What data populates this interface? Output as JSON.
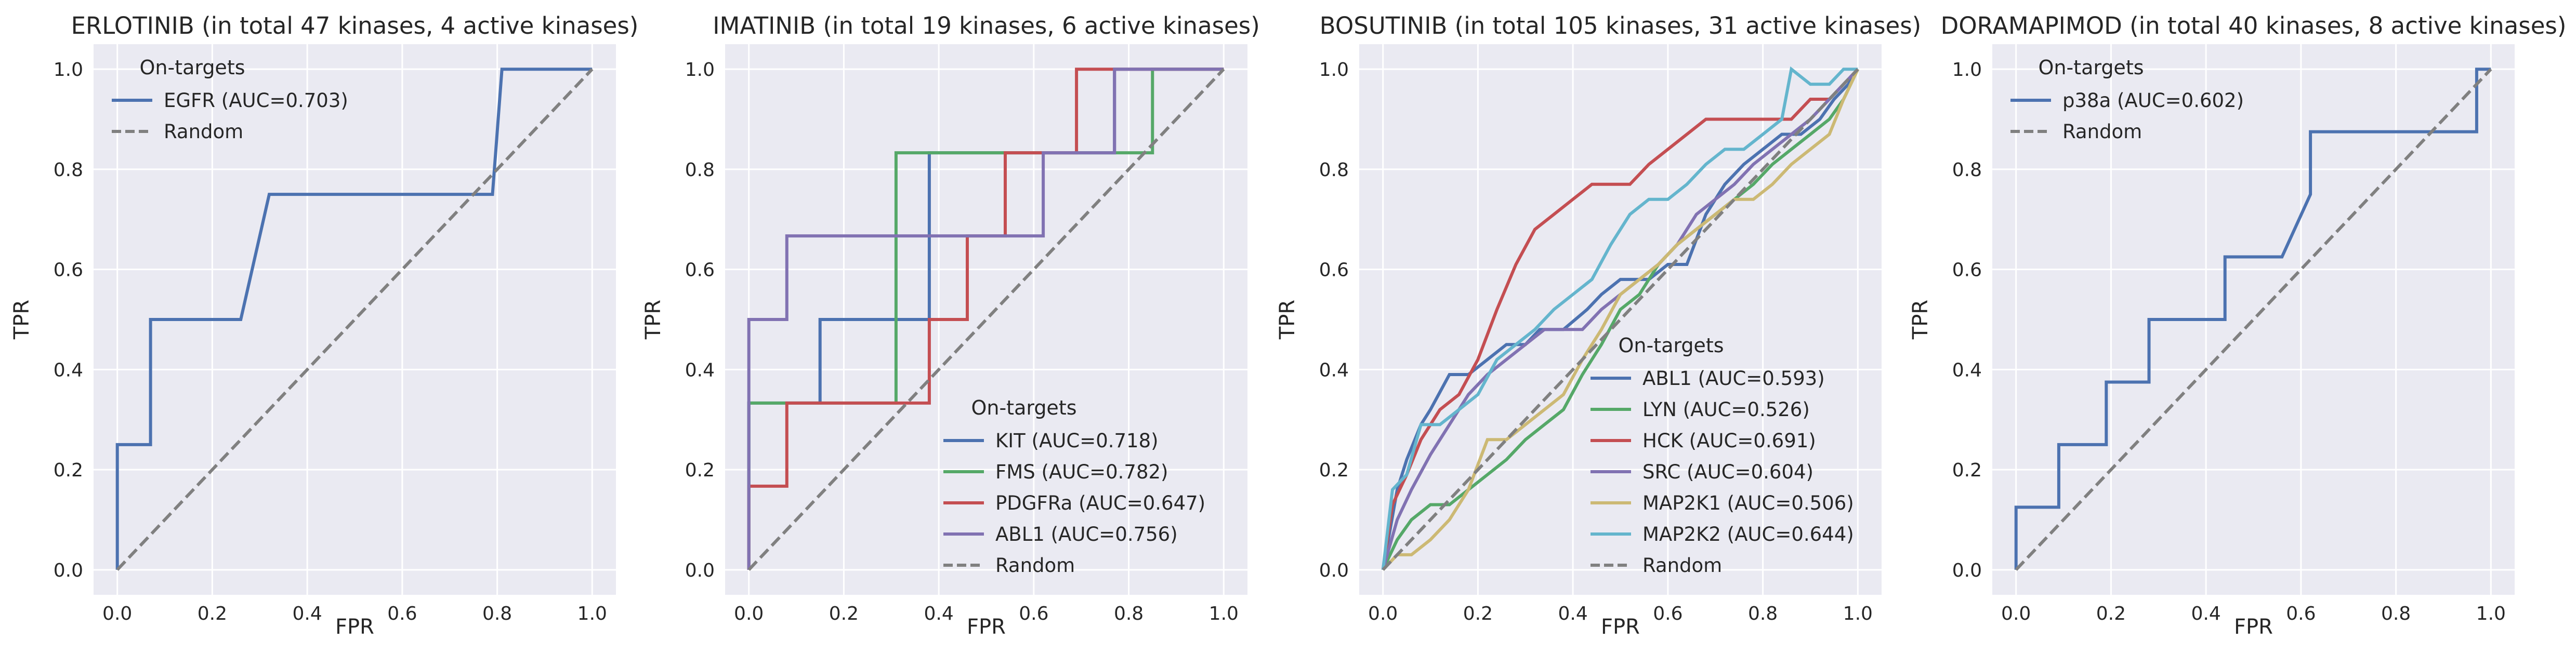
{
  "chart_data": [
    {
      "type": "line",
      "title": "ERLOTINIB (in total 47 kinases, 4 active kinases)",
      "xlabel": "FPR",
      "ylabel": "TPR",
      "xlim": [
        0,
        1
      ],
      "ylim": [
        0,
        1
      ],
      "xticks": [
        "0.0",
        "0.2",
        "0.4",
        "0.6",
        "0.8",
        "1.0"
      ],
      "yticks": [
        "0.0",
        "0.2",
        "0.4",
        "0.6",
        "0.8",
        "1.0"
      ],
      "grid": true,
      "legend": {
        "title": "On-targets",
        "position": "upper-left"
      },
      "series": [
        {
          "name": "EGFR (AUC=0.703)",
          "color": "#4c72b0",
          "x": [
            0.0,
            0.0,
            0.07,
            0.07,
            0.11,
            0.11,
            0.26,
            0.32,
            0.32,
            0.79,
            0.79,
            0.81,
            0.81,
            1.0
          ],
          "y": [
            0.0,
            0.25,
            0.25,
            0.5,
            0.5,
            0.5,
            0.5,
            0.75,
            0.75,
            0.75,
            0.75,
            1.0,
            1.0,
            1.0
          ]
        }
      ],
      "random": {
        "name": "Random",
        "color": "#808080",
        "x": [
          0,
          1
        ],
        "y": [
          0,
          1
        ]
      }
    },
    {
      "type": "line",
      "title": "IMATINIB (in total 19 kinases, 6 active kinases)",
      "xlabel": "FPR",
      "ylabel": "TPR",
      "xlim": [
        0,
        1
      ],
      "ylim": [
        0,
        1
      ],
      "xticks": [
        "0.0",
        "0.2",
        "0.4",
        "0.6",
        "0.8",
        "1.0"
      ],
      "yticks": [
        "0.0",
        "0.2",
        "0.4",
        "0.6",
        "0.8",
        "1.0"
      ],
      "grid": true,
      "legend": {
        "title": "On-targets",
        "position": "lower-right"
      },
      "series": [
        {
          "name": "KIT (AUC=0.718)",
          "color": "#4c72b0",
          "x": [
            0.0,
            0.0,
            0.08,
            0.08,
            0.15,
            0.15,
            0.38,
            0.38,
            0.77,
            0.77,
            1.0
          ],
          "y": [
            0.0,
            0.333,
            0.333,
            0.333,
            0.333,
            0.5,
            0.5,
            0.833,
            0.833,
            1.0,
            1.0
          ]
        },
        {
          "name": "FMS (AUC=0.782)",
          "color": "#55a868",
          "x": [
            0.0,
            0.0,
            0.08,
            0.08,
            0.31,
            0.31,
            0.85,
            0.85,
            1.0
          ],
          "y": [
            0.0,
            0.333,
            0.333,
            0.333,
            0.333,
            0.833,
            0.833,
            1.0,
            1.0
          ]
        },
        {
          "name": "PDGFRa (AUC=0.647)",
          "color": "#c44e52",
          "x": [
            0.0,
            0.0,
            0.08,
            0.08,
            0.38,
            0.38,
            0.46,
            0.46,
            0.54,
            0.54,
            0.69,
            0.69,
            1.0
          ],
          "y": [
            0.0,
            0.167,
            0.167,
            0.333,
            0.333,
            0.5,
            0.5,
            0.667,
            0.667,
            0.833,
            0.833,
            1.0,
            1.0
          ]
        },
        {
          "name": "ABL1 (AUC=0.756)",
          "color": "#8172b2",
          "x": [
            0.0,
            0.0,
            0.08,
            0.08,
            0.46,
            0.46,
            0.62,
            0.62,
            0.77,
            0.77,
            1.0
          ],
          "y": [
            0.0,
            0.5,
            0.5,
            0.667,
            0.667,
            0.667,
            0.667,
            0.833,
            0.833,
            1.0,
            1.0
          ]
        }
      ],
      "random": {
        "name": "Random",
        "color": "#808080",
        "x": [
          0,
          1
        ],
        "y": [
          0,
          1
        ]
      }
    },
    {
      "type": "line",
      "title": "BOSUTINIB (in total 105 kinases, 31 active kinases)",
      "xlabel": "FPR",
      "ylabel": "TPR",
      "xlim": [
        0,
        1
      ],
      "ylim": [
        0,
        1
      ],
      "xticks": [
        "0.0",
        "0.2",
        "0.4",
        "0.6",
        "0.8",
        "1.0"
      ],
      "yticks": [
        "0.0",
        "0.2",
        "0.4",
        "0.6",
        "0.8",
        "1.0"
      ],
      "grid": true,
      "legend": {
        "title": "On-targets",
        "position": "lower-right"
      },
      "series": [
        {
          "name": "ABL1 (AUC=0.593)",
          "color": "#4c72b0",
          "x": [
            0.0,
            0.03,
            0.05,
            0.08,
            0.1,
            0.14,
            0.18,
            0.22,
            0.26,
            0.3,
            0.33,
            0.38,
            0.43,
            0.46,
            0.5,
            0.56,
            0.6,
            0.64,
            0.68,
            0.72,
            0.76,
            0.8,
            0.84,
            0.88,
            0.92,
            0.95,
            0.98,
            1.0
          ],
          "y": [
            0.0,
            0.16,
            0.22,
            0.29,
            0.32,
            0.39,
            0.39,
            0.42,
            0.45,
            0.45,
            0.48,
            0.48,
            0.52,
            0.55,
            0.58,
            0.58,
            0.61,
            0.61,
            0.71,
            0.77,
            0.81,
            0.84,
            0.87,
            0.87,
            0.9,
            0.94,
            0.97,
            1.0
          ]
        },
        {
          "name": "LYN (AUC=0.526)",
          "color": "#55a868",
          "x": [
            0.0,
            0.03,
            0.06,
            0.1,
            0.14,
            0.18,
            0.22,
            0.26,
            0.3,
            0.34,
            0.38,
            0.42,
            0.46,
            0.5,
            0.54,
            0.58,
            0.62,
            0.66,
            0.7,
            0.74,
            0.78,
            0.82,
            0.86,
            0.9,
            0.94,
            0.97,
            1.0
          ],
          "y": [
            0.0,
            0.06,
            0.1,
            0.13,
            0.13,
            0.16,
            0.19,
            0.22,
            0.26,
            0.29,
            0.32,
            0.39,
            0.45,
            0.52,
            0.55,
            0.61,
            0.65,
            0.68,
            0.71,
            0.74,
            0.77,
            0.81,
            0.84,
            0.87,
            0.9,
            0.94,
            1.0
          ]
        },
        {
          "name": "HCK (AUC=0.691)",
          "color": "#c44e52",
          "x": [
            0.0,
            0.02,
            0.05,
            0.08,
            0.12,
            0.16,
            0.2,
            0.24,
            0.28,
            0.32,
            0.36,
            0.4,
            0.44,
            0.48,
            0.52,
            0.56,
            0.6,
            0.64,
            0.68,
            0.74,
            0.8,
            0.86,
            0.9,
            0.94,
            0.97,
            1.0
          ],
          "y": [
            0.0,
            0.13,
            0.19,
            0.26,
            0.32,
            0.35,
            0.42,
            0.52,
            0.61,
            0.68,
            0.71,
            0.74,
            0.77,
            0.77,
            0.77,
            0.81,
            0.84,
            0.87,
            0.9,
            0.9,
            0.9,
            0.9,
            0.94,
            0.94,
            0.97,
            1.0
          ]
        },
        {
          "name": "SRC (AUC=0.604)",
          "color": "#8172b2",
          "x": [
            0.0,
            0.03,
            0.06,
            0.1,
            0.14,
            0.18,
            0.22,
            0.26,
            0.3,
            0.34,
            0.38,
            0.42,
            0.46,
            0.5,
            0.54,
            0.58,
            0.62,
            0.66,
            0.7,
            0.74,
            0.78,
            0.82,
            0.86,
            0.9,
            0.94,
            0.97,
            1.0
          ],
          "y": [
            0.0,
            0.1,
            0.16,
            0.23,
            0.29,
            0.35,
            0.39,
            0.42,
            0.45,
            0.48,
            0.48,
            0.48,
            0.52,
            0.55,
            0.58,
            0.61,
            0.65,
            0.71,
            0.74,
            0.77,
            0.81,
            0.84,
            0.87,
            0.9,
            0.94,
            0.97,
            1.0
          ]
        },
        {
          "name": "MAP2K1 (AUC=0.506)",
          "color": "#ccb974",
          "x": [
            0.0,
            0.03,
            0.06,
            0.1,
            0.14,
            0.18,
            0.22,
            0.26,
            0.3,
            0.34,
            0.38,
            0.42,
            0.46,
            0.5,
            0.54,
            0.58,
            0.62,
            0.66,
            0.7,
            0.74,
            0.78,
            0.82,
            0.86,
            0.9,
            0.94,
            0.97,
            1.0
          ],
          "y": [
            0.0,
            0.03,
            0.03,
            0.06,
            0.1,
            0.16,
            0.26,
            0.26,
            0.29,
            0.32,
            0.35,
            0.42,
            0.48,
            0.55,
            0.58,
            0.61,
            0.65,
            0.68,
            0.71,
            0.74,
            0.74,
            0.77,
            0.81,
            0.84,
            0.87,
            0.94,
            1.0
          ]
        },
        {
          "name": "MAP2K2 (AUC=0.644)",
          "color": "#64b5cd",
          "x": [
            0.0,
            0.02,
            0.05,
            0.08,
            0.12,
            0.16,
            0.2,
            0.24,
            0.28,
            0.32,
            0.36,
            0.4,
            0.44,
            0.48,
            0.52,
            0.56,
            0.6,
            0.64,
            0.68,
            0.72,
            0.76,
            0.8,
            0.84,
            0.86,
            0.9,
            0.94,
            0.97,
            1.0
          ],
          "y": [
            0.0,
            0.16,
            0.19,
            0.29,
            0.29,
            0.32,
            0.35,
            0.42,
            0.45,
            0.48,
            0.52,
            0.55,
            0.58,
            0.65,
            0.71,
            0.74,
            0.74,
            0.77,
            0.81,
            0.84,
            0.84,
            0.87,
            0.9,
            1.0,
            0.97,
            0.97,
            1.0,
            1.0
          ]
        }
      ],
      "random": {
        "name": "Random",
        "color": "#808080",
        "x": [
          0,
          1
        ],
        "y": [
          0,
          1
        ]
      }
    },
    {
      "type": "line",
      "title": "DORAMAPIMOD (in total 40 kinases, 8 active kinases)",
      "xlabel": "FPR",
      "ylabel": "TPR",
      "xlim": [
        0,
        1
      ],
      "ylim": [
        0,
        1
      ],
      "xticks": [
        "0.0",
        "0.2",
        "0.4",
        "0.6",
        "0.8",
        "1.0"
      ],
      "yticks": [
        "0.0",
        "0.2",
        "0.4",
        "0.6",
        "0.8",
        "1.0"
      ],
      "grid": true,
      "legend": {
        "title": "On-targets",
        "position": "upper-left"
      },
      "series": [
        {
          "name": "p38a (AUC=0.602)",
          "color": "#4c72b0",
          "x": [
            0.0,
            0.0,
            0.09,
            0.09,
            0.19,
            0.19,
            0.28,
            0.28,
            0.41,
            0.41,
            0.44,
            0.44,
            0.56,
            0.62,
            0.62,
            0.97,
            0.97,
            1.0
          ],
          "y": [
            0.0,
            0.125,
            0.125,
            0.25,
            0.25,
            0.375,
            0.375,
            0.5,
            0.5,
            0.5,
            0.5,
            0.625,
            0.625,
            0.75,
            0.875,
            0.875,
            1.0,
            1.0
          ]
        }
      ],
      "random": {
        "name": "Random",
        "color": "#808080",
        "x": [
          0,
          1
        ],
        "y": [
          0,
          1
        ]
      }
    }
  ]
}
